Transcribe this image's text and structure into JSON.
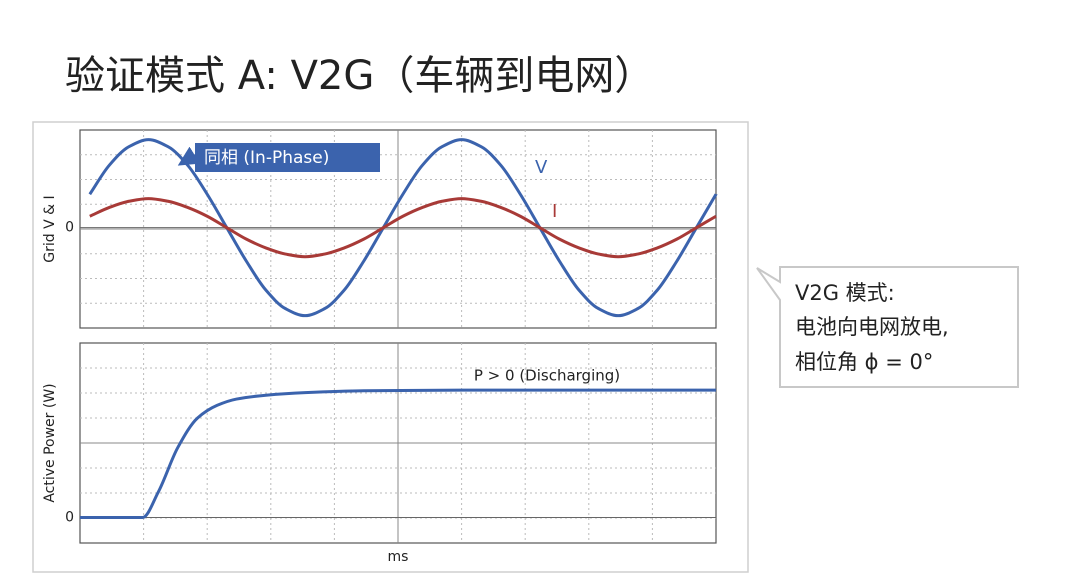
{
  "slide": {
    "title": "验证模式 A: V2G（车辆到电网）",
    "callout": [
      "V2G 模式:",
      "电池向电网放电,",
      "相位角 ϕ = 0°"
    ]
  },
  "chart_data": [
    {
      "type": "line",
      "ylabel": "Grid V & I",
      "x": [
        1,
        2,
        3,
        4,
        5,
        6,
        7,
        8,
        9,
        10,
        11,
        12,
        13,
        14,
        15,
        16,
        17,
        18,
        19,
        20,
        21,
        22,
        23,
        24,
        25,
        26,
        27,
        28,
        29,
        30,
        31,
        32,
        33
      ],
      "series": [
        {
          "name": "V",
          "color": "#3b63ad",
          "values": [
            0.38,
            0.71,
            0.92,
            1,
            0.92,
            0.71,
            0.38,
            0,
            -0.38,
            -0.71,
            -0.92,
            -1,
            -0.92,
            -0.71,
            -0.38,
            0,
            0.38,
            0.71,
            0.92,
            1,
            0.92,
            0.71,
            0.38,
            0,
            -0.38,
            -0.71,
            -0.92,
            -1,
            -0.92,
            -0.71,
            -0.38,
            0,
            0.38
          ]
        },
        {
          "name": "I",
          "color": "#a83a37",
          "values": [
            0.13,
            0.23,
            0.3,
            0.33,
            0.3,
            0.23,
            0.13,
            0,
            -0.13,
            -0.23,
            -0.3,
            -0.33,
            -0.3,
            -0.23,
            -0.13,
            0,
            0.13,
            0.23,
            0.3,
            0.33,
            0.3,
            0.23,
            0.13,
            0,
            -0.13,
            -0.23,
            -0.3,
            -0.33,
            -0.3,
            -0.23,
            -0.13,
            0,
            0.13
          ]
        }
      ],
      "xlim": [
        0.5,
        33
      ],
      "ylim": [
        -1.14,
        1.11
      ],
      "yticks": [
        0
      ],
      "grid": true,
      "annotation": "同相 (In-Phase)",
      "annotation_color": "#3b63ad"
    },
    {
      "type": "line",
      "ylabel": "Active Power (W)",
      "xlabel": "ms",
      "x": [
        0.5,
        3.7,
        4.5,
        5.5,
        6.5,
        7.5,
        8.5,
        10,
        12,
        15,
        20,
        25,
        33
      ],
      "series": [
        {
          "color": "#3b63ad",
          "values": [
            0,
            0,
            0.2,
            0.55,
            0.78,
            0.88,
            0.93,
            0.96,
            0.98,
            0.995,
            1,
            1,
            1
          ]
        }
      ],
      "xlim": [
        0.5,
        33
      ],
      "ylim": [
        -0.2,
        1.37
      ],
      "yticks": [
        0
      ],
      "grid": true,
      "annotation": "P > 0 (Discharging)"
    }
  ]
}
